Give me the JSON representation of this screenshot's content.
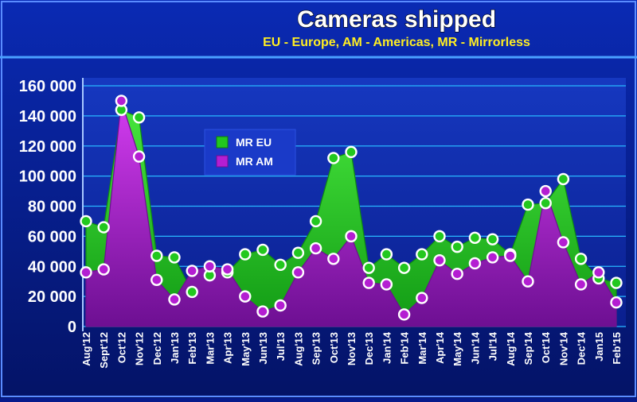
{
  "chart_data": {
    "type": "area",
    "title": "Cameras shipped",
    "subtitle": "EU - Europe, AM - Americas, MR - Mirrorless",
    "xlabel": "",
    "ylabel": "",
    "ylim": [
      0,
      160000
    ],
    "yticks": [
      {
        "value": 0,
        "label": "0"
      },
      {
        "value": 20000,
        "label": "20 000"
      },
      {
        "value": 40000,
        "label": "40 000"
      },
      {
        "value": 60000,
        "label": "60 000"
      },
      {
        "value": 80000,
        "label": "80 000"
      },
      {
        "value": 100000,
        "label": "100 000"
      },
      {
        "value": 120000,
        "label": "120 000"
      },
      {
        "value": 140000,
        "label": "140 000"
      },
      {
        "value": 160000,
        "label": "160 000"
      }
    ],
    "categories": [
      "Aug'12",
      "Sept'12",
      "Oct'12",
      "Nov'12",
      "Dec'12",
      "Jan'13",
      "Feb'13",
      "Mar'13",
      "Apr'13",
      "May'13",
      "Jun'13",
      "Jul'13",
      "Aug'13",
      "Sep'13",
      "Oct'13",
      "Nov'13",
      "Dec'13",
      "Jan'14",
      "Feb'14",
      "Mar'14",
      "Apr'14",
      "May'14",
      "Jun'14",
      "Jul'14",
      "Aug'14",
      "Sep'14",
      "Oct'14",
      "Nov'14",
      "Dec'14",
      "Jan15",
      "Feb'15"
    ],
    "series": [
      {
        "name": "MR EU",
        "color": "#22c81e",
        "values": [
          70000,
          66000,
          144000,
          139000,
          47000,
          46000,
          23000,
          34000,
          36000,
          48000,
          51000,
          41000,
          49000,
          70000,
          112000,
          116000,
          39000,
          48000,
          39000,
          48000,
          60000,
          53000,
          59000,
          58000,
          48000,
          81000,
          82000,
          98000,
          45000,
          32000,
          29000
        ]
      },
      {
        "name": "MR AM",
        "color": "#b41ed2",
        "values": [
          36000,
          38000,
          150000,
          113000,
          31000,
          18000,
          37000,
          40000,
          38000,
          20000,
          10000,
          14000,
          36000,
          52000,
          45000,
          60000,
          29000,
          28000,
          8000,
          19000,
          44000,
          35000,
          42000,
          46000,
          47000,
          30000,
          90000,
          56000,
          28000,
          36000,
          16000
        ]
      }
    ],
    "legend_position": "upper-left-inside",
    "grid": true
  }
}
